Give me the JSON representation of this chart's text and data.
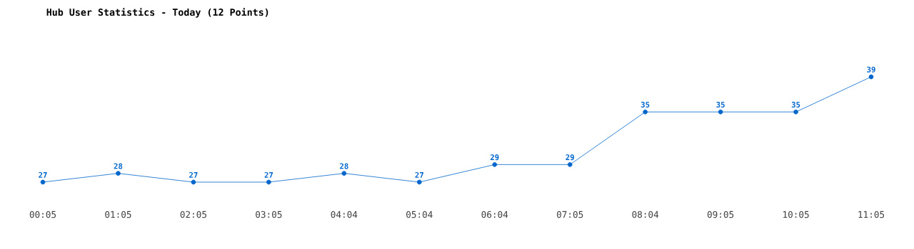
{
  "chart_data": {
    "type": "line",
    "title": "Hub User Statistics - Today (12 Points)",
    "categories": [
      "00:05",
      "01:05",
      "02:05",
      "03:05",
      "04:04",
      "05:04",
      "06:04",
      "07:05",
      "08:04",
      "09:05",
      "10:05",
      "11:05"
    ],
    "values": [
      27,
      28,
      27,
      27,
      28,
      27,
      29,
      29,
      35,
      35,
      35,
      39
    ],
    "color": "#0066cc",
    "marker": "circle",
    "line_style": "solid",
    "data_labels": true,
    "tick_labels": "x"
  }
}
